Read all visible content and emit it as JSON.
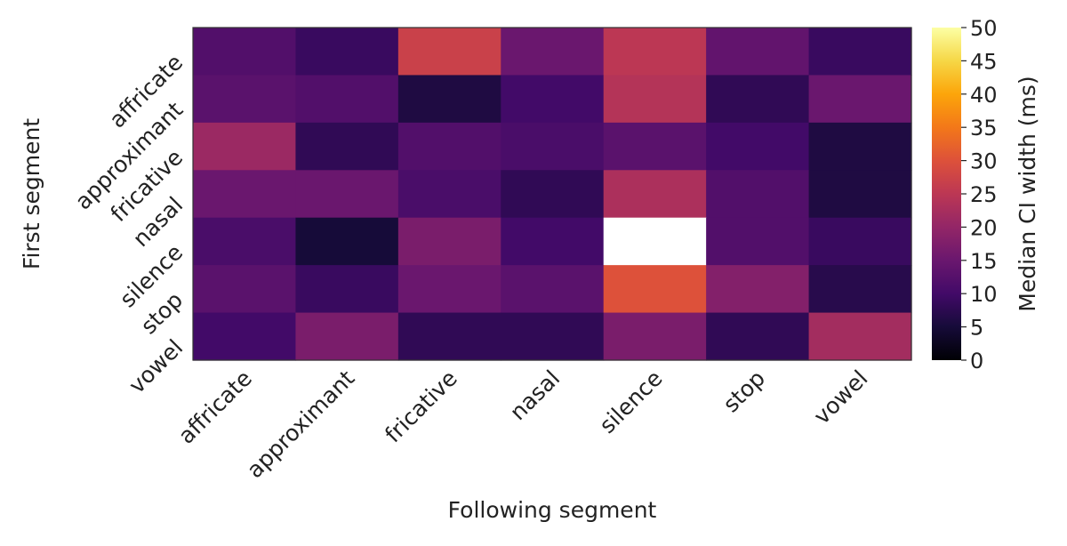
{
  "chart_data": {
    "type": "heatmap",
    "title": "",
    "xlabel": "Following segment",
    "ylabel": "First segment",
    "x_categories": [
      "affricate",
      "approximant",
      "fricative",
      "nasal",
      "silence",
      "stop",
      "vowel"
    ],
    "y_categories": [
      "affricate",
      "approximant",
      "fricative",
      "nasal",
      "silence",
      "stop",
      "vowel"
    ],
    "values": [
      [
        12,
        9,
        27,
        15,
        25,
        14,
        9
      ],
      [
        13,
        12,
        6,
        10,
        24,
        8,
        15
      ],
      [
        21,
        8,
        12,
        11,
        13,
        10,
        6
      ],
      [
        15,
        15,
        11,
        8,
        23,
        12,
        6
      ],
      [
        11,
        5,
        17,
        10,
        50,
        12,
        9
      ],
      [
        13,
        9,
        15,
        13,
        30,
        18,
        7
      ],
      [
        10,
        17,
        8,
        8,
        17,
        8,
        22
      ]
    ],
    "colorbar": {
      "label": "Median CI width (ms)",
      "range": [
        0,
        50
      ],
      "ticks": [
        "0",
        "5",
        "10",
        "15",
        "20",
        "25",
        "30",
        "35",
        "40",
        "45",
        "50"
      ],
      "colormap": "inferno"
    },
    "grid": false
  }
}
